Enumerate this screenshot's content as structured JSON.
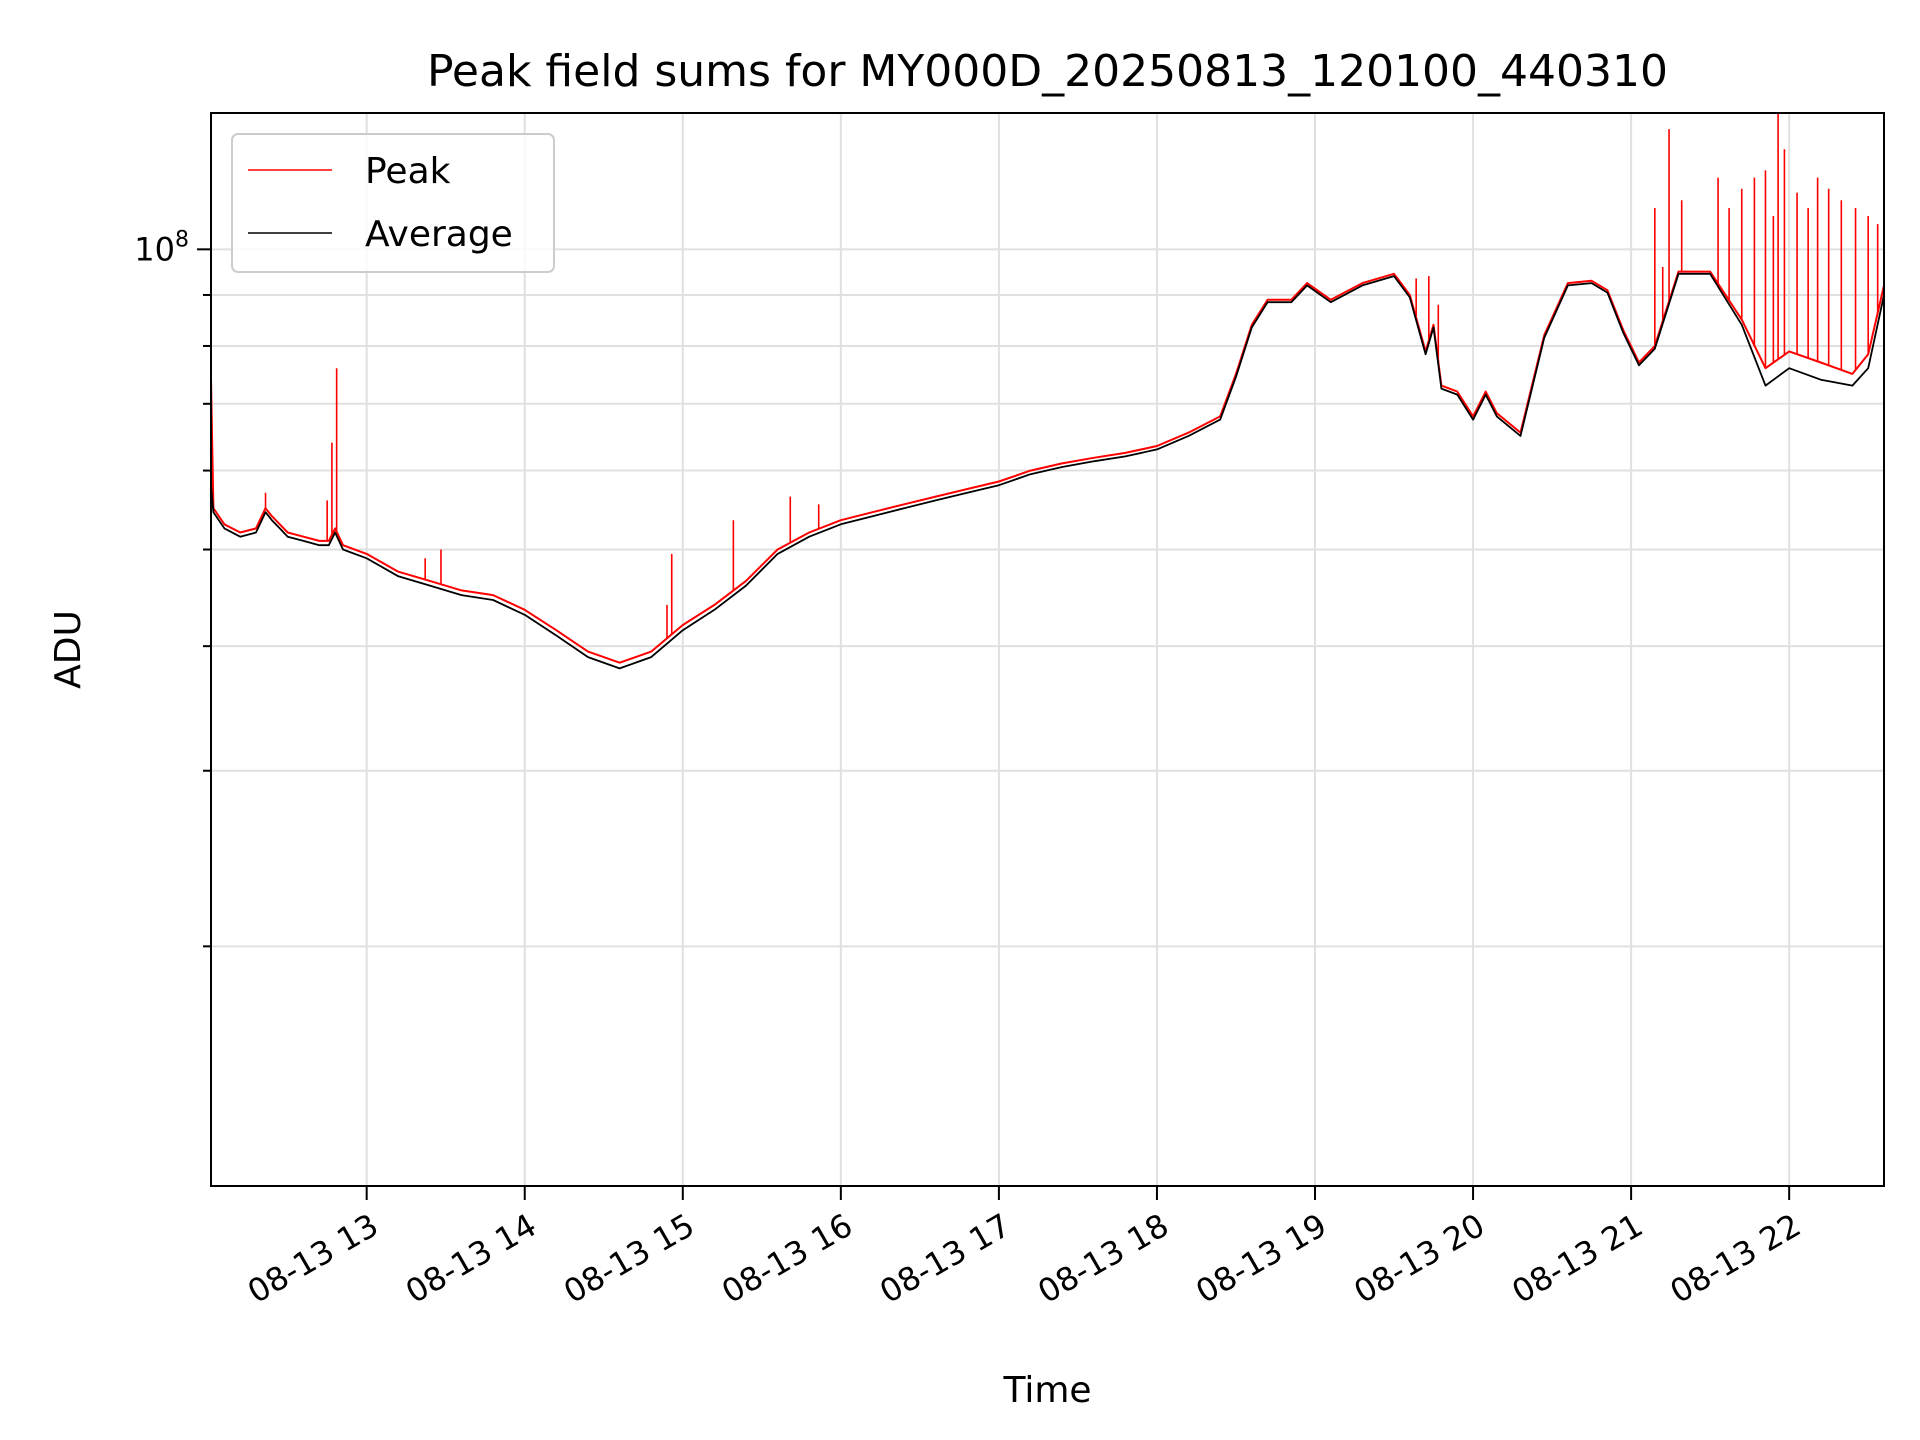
{
  "chart_data": {
    "type": "line",
    "title": "Peak field sums for MY000D_20250813_120100_440310",
    "xlabel": "Time",
    "ylabel": "ADU",
    "y_scale": "log",
    "ylim": [
      11500000,
      137000000
    ],
    "xlim_hours": [
      12.015,
      22.6
    ],
    "x_ticks": [
      {
        "hour": 13,
        "label": "08-13 13"
      },
      {
        "hour": 14,
        "label": "08-13 14"
      },
      {
        "hour": 15,
        "label": "08-13 15"
      },
      {
        "hour": 16,
        "label": "08-13 16"
      },
      {
        "hour": 17,
        "label": "08-13 17"
      },
      {
        "hour": 18,
        "label": "08-13 18"
      },
      {
        "hour": 19,
        "label": "08-13 19"
      },
      {
        "hour": 20,
        "label": "08-13 20"
      },
      {
        "hour": 21,
        "label": "08-13 21"
      },
      {
        "hour": 22,
        "label": "08-13 22"
      }
    ],
    "y_major_tick": {
      "value": 100000000,
      "label_base": "10",
      "label_exp": "8"
    },
    "y_minor_ticks": [
      20000000,
      30000000,
      40000000,
      50000000,
      60000000,
      70000000,
      80000000,
      90000000
    ],
    "grid": true,
    "legend_position": "top-left",
    "series": [
      {
        "name": "Peak",
        "color": "#ff0000",
        "points": [
          [
            12.015,
            74000000
          ],
          [
            12.03,
            55000000
          ],
          [
            12.1,
            53000000
          ],
          [
            12.2,
            52000000
          ],
          [
            12.3,
            52500000
          ],
          [
            12.36,
            55000000
          ],
          [
            12.4,
            54000000
          ],
          [
            12.45,
            53000000
          ],
          [
            12.5,
            52000000
          ],
          [
            12.6,
            51500000
          ],
          [
            12.7,
            51000000
          ],
          [
            12.76,
            51000000
          ],
          [
            12.8,
            52500000
          ],
          [
            12.85,
            50500000
          ],
          [
            13.0,
            49500000
          ],
          [
            13.2,
            47500000
          ],
          [
            13.4,
            46500000
          ],
          [
            13.6,
            45500000
          ],
          [
            13.8,
            45000000
          ],
          [
            14.0,
            43500000
          ],
          [
            14.2,
            41500000
          ],
          [
            14.4,
            39500000
          ],
          [
            14.6,
            38500000
          ],
          [
            14.8,
            39500000
          ],
          [
            15.0,
            42000000
          ],
          [
            15.2,
            44000000
          ],
          [
            15.4,
            46500000
          ],
          [
            15.6,
            50000000
          ],
          [
            15.8,
            52000000
          ],
          [
            16.0,
            53500000
          ],
          [
            16.2,
            54500000
          ],
          [
            16.4,
            55500000
          ],
          [
            16.6,
            56500000
          ],
          [
            16.8,
            57500000
          ],
          [
            17.0,
            58500000
          ],
          [
            17.2,
            60000000
          ],
          [
            17.4,
            61000000
          ],
          [
            17.6,
            61800000
          ],
          [
            17.8,
            62500000
          ],
          [
            18.0,
            63500000
          ],
          [
            18.2,
            65500000
          ],
          [
            18.4,
            68000000
          ],
          [
            18.5,
            75000000
          ],
          [
            18.6,
            84000000
          ],
          [
            18.7,
            89000000
          ],
          [
            18.85,
            89000000
          ],
          [
            18.95,
            92500000
          ],
          [
            19.1,
            89000000
          ],
          [
            19.3,
            92500000
          ],
          [
            19.5,
            94500000
          ],
          [
            19.6,
            90000000
          ],
          [
            19.7,
            79000000
          ],
          [
            19.75,
            84000000
          ],
          [
            19.8,
            73000000
          ],
          [
            19.9,
            72000000
          ],
          [
            20.0,
            68000000
          ],
          [
            20.08,
            72000000
          ],
          [
            20.15,
            68500000
          ],
          [
            20.3,
            65500000
          ],
          [
            20.45,
            82000000
          ],
          [
            20.6,
            92500000
          ],
          [
            20.75,
            93000000
          ],
          [
            20.85,
            91000000
          ],
          [
            20.95,
            83000000
          ],
          [
            21.05,
            77000000
          ],
          [
            21.15,
            80000000
          ],
          [
            21.3,
            95000000
          ],
          [
            21.5,
            95000000
          ],
          [
            21.7,
            85000000
          ],
          [
            21.85,
            76000000
          ],
          [
            22.0,
            79000000
          ],
          [
            22.2,
            77000000
          ],
          [
            22.4,
            75000000
          ],
          [
            22.5,
            78500000
          ],
          [
            22.6,
            92000000
          ]
        ],
        "spikes": [
          [
            12.36,
            57000000
          ],
          [
            12.75,
            56000000
          ],
          [
            12.78,
            64000000
          ],
          [
            12.81,
            76000000
          ],
          [
            13.37,
            49000000
          ],
          [
            13.47,
            50000000
          ],
          [
            14.9,
            44000000
          ],
          [
            14.93,
            49500000
          ],
          [
            15.32,
            53500000
          ],
          [
            15.68,
            56500000
          ],
          [
            15.86,
            55500000
          ],
          [
            19.64,
            93500000
          ],
          [
            19.72,
            94000000
          ],
          [
            19.78,
            88000000
          ],
          [
            21.15,
            110000000
          ],
          [
            21.2,
            96000000
          ],
          [
            21.24,
            132000000
          ],
          [
            21.32,
            112000000
          ],
          [
            21.55,
            118000000
          ],
          [
            21.62,
            110000000
          ],
          [
            21.7,
            115000000
          ],
          [
            21.78,
            118000000
          ],
          [
            21.85,
            120000000
          ],
          [
            21.9,
            108000000
          ],
          [
            21.93,
            137000000
          ],
          [
            21.97,
            126000000
          ],
          [
            22.05,
            114000000
          ],
          [
            22.12,
            110000000
          ],
          [
            22.18,
            118000000
          ],
          [
            22.25,
            115000000
          ],
          [
            22.33,
            112000000
          ],
          [
            22.42,
            110000000
          ],
          [
            22.5,
            108000000
          ],
          [
            22.56,
            106000000
          ]
        ]
      },
      {
        "name": "Average",
        "color": "#000000",
        "points": [
          [
            12.015,
            58000000
          ],
          [
            12.03,
            54500000
          ],
          [
            12.1,
            52500000
          ],
          [
            12.2,
            51500000
          ],
          [
            12.3,
            52000000
          ],
          [
            12.36,
            54500000
          ],
          [
            12.4,
            53500000
          ],
          [
            12.45,
            52500000
          ],
          [
            12.5,
            51500000
          ],
          [
            12.6,
            51000000
          ],
          [
            12.7,
            50500000
          ],
          [
            12.76,
            50500000
          ],
          [
            12.8,
            52000000
          ],
          [
            12.85,
            50000000
          ],
          [
            13.0,
            49000000
          ],
          [
            13.2,
            47000000
          ],
          [
            13.4,
            46000000
          ],
          [
            13.6,
            45000000
          ],
          [
            13.8,
            44500000
          ],
          [
            14.0,
            43000000
          ],
          [
            14.2,
            41000000
          ],
          [
            14.4,
            39000000
          ],
          [
            14.6,
            38000000
          ],
          [
            14.8,
            39000000
          ],
          [
            15.0,
            41500000
          ],
          [
            15.2,
            43500000
          ],
          [
            15.4,
            46000000
          ],
          [
            15.6,
            49500000
          ],
          [
            15.8,
            51500000
          ],
          [
            16.0,
            53000000
          ],
          [
            16.2,
            54000000
          ],
          [
            16.4,
            55000000
          ],
          [
            16.6,
            56000000
          ],
          [
            16.8,
            57000000
          ],
          [
            17.0,
            58000000
          ],
          [
            17.2,
            59500000
          ],
          [
            17.4,
            60500000
          ],
          [
            17.6,
            61300000
          ],
          [
            17.8,
            62000000
          ],
          [
            18.0,
            63000000
          ],
          [
            18.2,
            65000000
          ],
          [
            18.4,
            67500000
          ],
          [
            18.5,
            74500000
          ],
          [
            18.6,
            83500000
          ],
          [
            18.7,
            88500000
          ],
          [
            18.85,
            88500000
          ],
          [
            18.95,
            92000000
          ],
          [
            19.1,
            88500000
          ],
          [
            19.3,
            92000000
          ],
          [
            19.5,
            94000000
          ],
          [
            19.6,
            89500000
          ],
          [
            19.7,
            78500000
          ],
          [
            19.75,
            83500000
          ],
          [
            19.8,
            72500000
          ],
          [
            19.9,
            71500000
          ],
          [
            20.0,
            67500000
          ],
          [
            20.08,
            71500000
          ],
          [
            20.15,
            68000000
          ],
          [
            20.3,
            65000000
          ],
          [
            20.45,
            81500000
          ],
          [
            20.6,
            92000000
          ],
          [
            20.75,
            92500000
          ],
          [
            20.85,
            90500000
          ],
          [
            20.95,
            82500000
          ],
          [
            21.05,
            76500000
          ],
          [
            21.15,
            79500000
          ],
          [
            21.3,
            94500000
          ],
          [
            21.5,
            94500000
          ],
          [
            21.7,
            84000000
          ],
          [
            21.85,
            73000000
          ],
          [
            22.0,
            76000000
          ],
          [
            22.2,
            74000000
          ],
          [
            22.4,
            73000000
          ],
          [
            22.5,
            76000000
          ],
          [
            22.6,
            90000000
          ]
        ]
      }
    ]
  }
}
